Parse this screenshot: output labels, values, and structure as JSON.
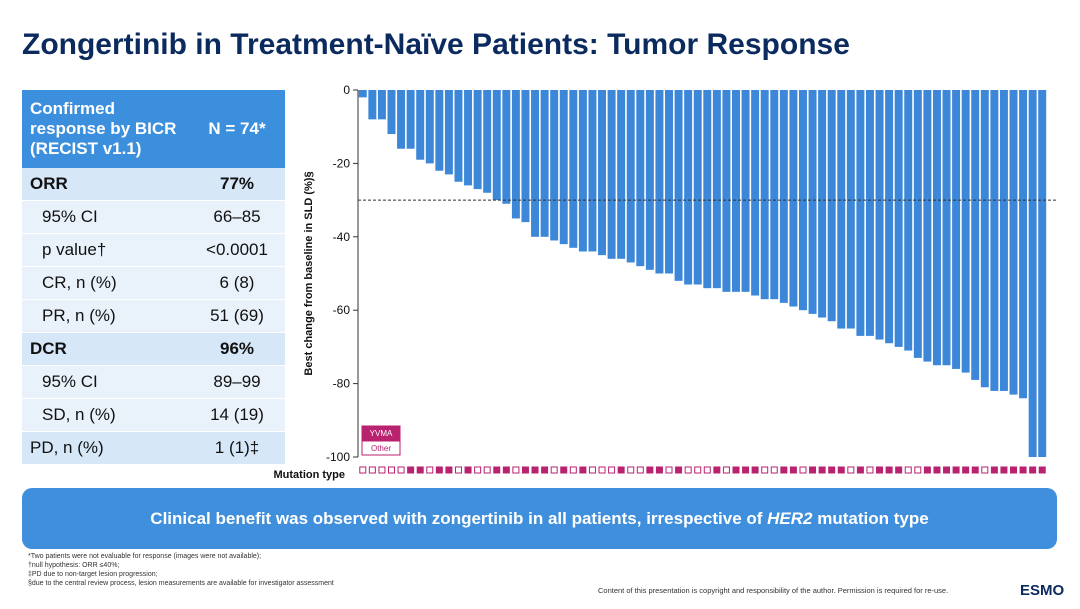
{
  "title": "Zongertinib in Treatment-Naïve Patients: Tumor Response",
  "table": {
    "header": [
      "Confirmed",
      "response by BICR",
      "(RECIST v1.1)"
    ],
    "n_header": "N = 74*",
    "rows": [
      [
        "ORR",
        "77%"
      ],
      [
        "95% CI",
        "66–85"
      ],
      [
        "p value†",
        "<0.0001"
      ],
      [
        "CR, n (%)",
        "6 (8)"
      ],
      [
        "PR, n (%)",
        "51 (69)"
      ],
      [
        "DCR",
        "96%"
      ],
      [
        "95% CI",
        "89–99"
      ],
      [
        "SD, n (%)",
        "14 (19)"
      ],
      [
        "PD, n (%)",
        "1 (1)‡"
      ]
    ]
  },
  "chart_data": {
    "type": "bar",
    "y_label": "Best change from baseline in SLD (%)§",
    "x_label": "Mutation type",
    "color": "#3d87d9",
    "values": [
      -2,
      -8,
      -8,
      -12,
      -16,
      -16,
      -19,
      -20,
      -22,
      -23,
      -25,
      -26,
      -27,
      -28,
      -30,
      -31,
      -35,
      -36,
      -40,
      -40,
      -41,
      -42,
      -43,
      -44,
      -44,
      -45,
      -46,
      -46,
      -47,
      -48,
      -49,
      -50,
      -50,
      -52,
      -53,
      -53,
      -54,
      -54,
      -55,
      -55,
      -55,
      -56,
      -57,
      -57,
      -58,
      -59,
      -60,
      -61,
      -62,
      -63,
      -65,
      -65,
      -67,
      -67,
      -68,
      -69,
      -70,
      -71,
      -73,
      -74,
      -75,
      -75,
      -76,
      -77,
      -79,
      -81,
      -82,
      -82,
      -83,
      -84,
      -100,
      -100
    ],
    "mutation": [
      "Other",
      "Other",
      "Other",
      "Other",
      "Other",
      "YVMA",
      "YVMA",
      "Other",
      "YVMA",
      "YVMA",
      "Other",
      "YVMA",
      "Other",
      "Other",
      "YVMA",
      "YVMA",
      "Other",
      "YVMA",
      "YVMA",
      "YVMA",
      "Other",
      "YVMA",
      "Other",
      "YVMA",
      "Other",
      "Other",
      "Other",
      "YVMA",
      "Other",
      "Other",
      "YVMA",
      "YVMA",
      "Other",
      "YVMA",
      "Other",
      "Other",
      "Other",
      "YVMA",
      "Other",
      "YVMA",
      "YVMA",
      "YVMA",
      "Other",
      "Other",
      "YVMA",
      "YVMA",
      "Other",
      "YVMA",
      "YVMA",
      "YVMA",
      "YVMA",
      "Other",
      "YVMA",
      "Other",
      "YVMA",
      "YVMA",
      "YVMA",
      "Other",
      "Other",
      "YVMA",
      "YVMA",
      "YVMA",
      "YVMA",
      "YVMA",
      "YVMA",
      "Other",
      "YVMA",
      "YVMA",
      "YVMA",
      "YVMA",
      "YVMA",
      "YVMA"
    ],
    "legend": [
      {
        "name": "YVMA",
        "color": "#b8226f"
      },
      {
        "name": "Other",
        "color": "#ffffff"
      }
    ],
    "reference_line": -30,
    "ylim": [
      -100,
      0
    ],
    "yticks": [
      0,
      -20,
      -40,
      -60,
      -80,
      -100
    ]
  },
  "banner": [
    "Clinical benefit was observed with zongertinib in all patients, irrespective of ",
    "HER2",
    " mutation type"
  ],
  "footnotes": [
    "*Two patients were not evaluable for response (images were not available);",
    "†null hypothesis: ORR ≤40%;",
    "‡PD due to non-target lesion progression;",
    "§due to the central review process, lesion measurements are available for investigator assessment"
  ],
  "copyright": "Content of this presentation is copyright and responsibility of the author. Permission is required for re-use.",
  "logo": "ESMO"
}
